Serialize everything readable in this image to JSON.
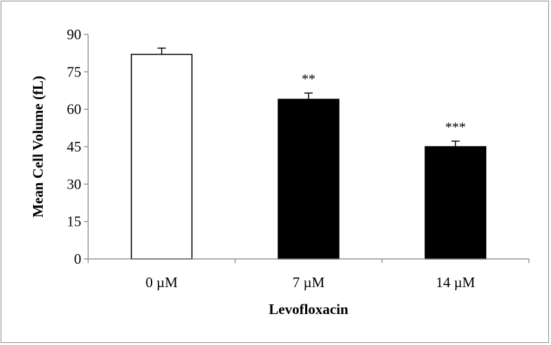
{
  "chart_data": {
    "type": "bar",
    "categories": [
      "0 µM",
      "7 µM",
      "14 µM"
    ],
    "values": [
      82,
      64,
      45
    ],
    "errors": [
      2.5,
      2.5,
      2.2
    ],
    "significance": [
      "",
      "**",
      "***"
    ],
    "bar_colors": [
      "#ffffff",
      "#000000",
      "#000000"
    ],
    "xlabel": "Levofloxacin",
    "ylabel": "Mean Cell Volume (fL)",
    "ylim": [
      0,
      90
    ],
    "yticks": [
      "0",
      "15",
      "30",
      "45",
      "60",
      "75",
      "90"
    ],
    "grid": false,
    "legend": "none"
  }
}
